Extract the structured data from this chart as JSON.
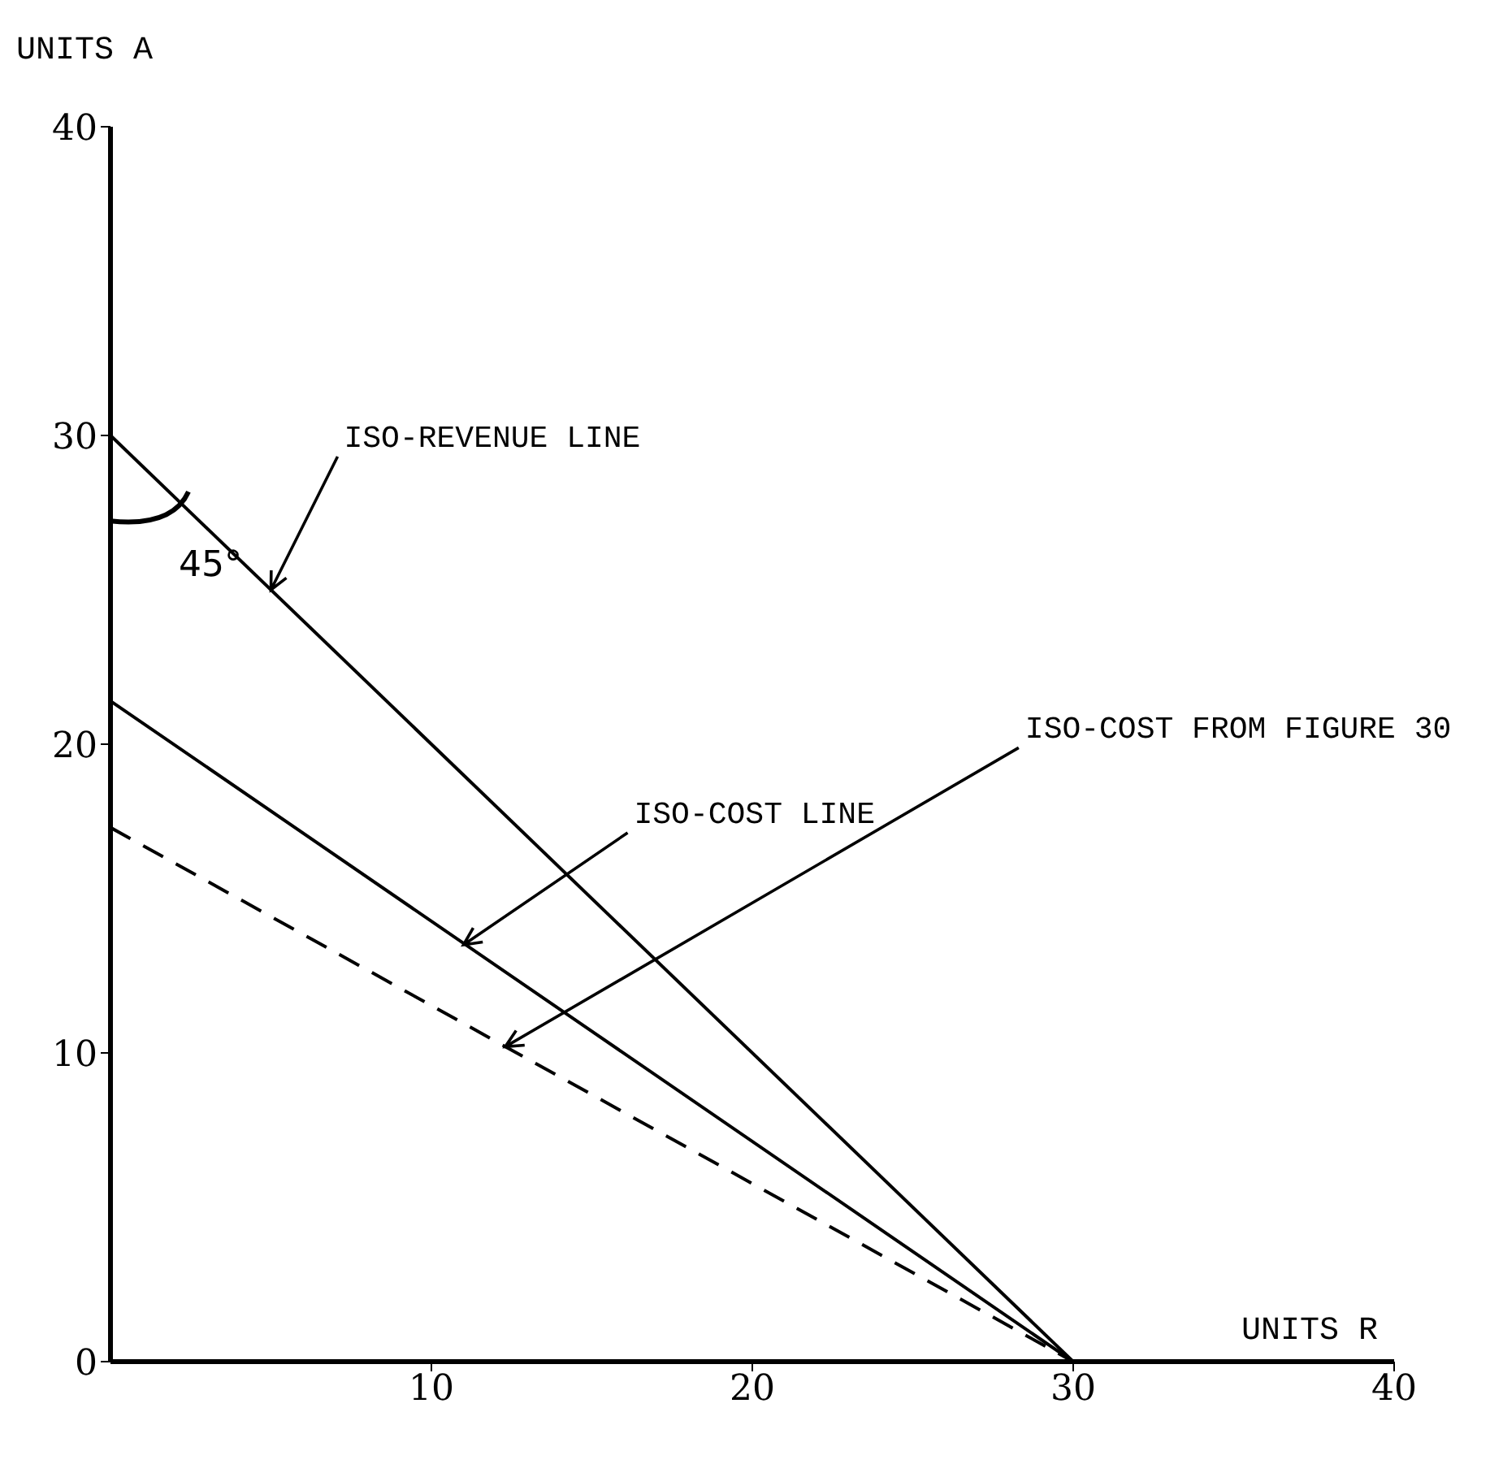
{
  "chart_data": {
    "type": "line",
    "xlabel": "UNITS R",
    "ylabel": "UNITS A",
    "x": [
      0,
      30
    ],
    "xlim": [
      0,
      40
    ],
    "ylim": [
      0,
      40
    ],
    "xticks": [
      10,
      20,
      30,
      40
    ],
    "yticks": [
      0,
      10,
      20,
      30,
      40
    ],
    "series": [
      {
        "values": [
          30,
          0
        ],
        "color": "#000000",
        "line_style": "solid"
      },
      {
        "values": [
          21.4,
          0
        ],
        "color": "#000000",
        "line_style": "solid"
      },
      {
        "values": [
          17.3,
          0
        ],
        "color": "#000000",
        "line_style": "dashed"
      }
    ],
    "annotations": [
      {
        "text": "ISO-REVENUE LINE",
        "x": 5,
        "y": 25
      },
      {
        "text": "ISO-COST LINE",
        "x": 11,
        "y": 13.5
      },
      {
        "text": "ISO-COST FROM FIGURE 30",
        "x": 12.3,
        "y": 10.2
      },
      "45°"
    ]
  }
}
